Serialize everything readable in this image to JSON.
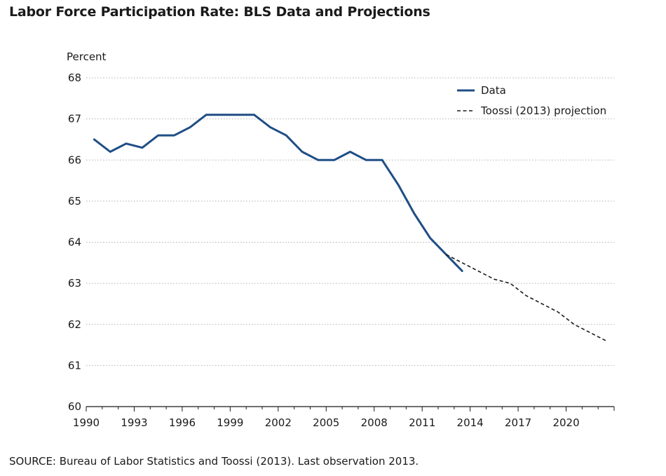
{
  "title": "Labor Force Participation Rate: BLS Data and Projections",
  "source": "SOURCE: Bureau of Labor Statistics and Toossi (2013). Last observation 2013.",
  "colors": {
    "data": "#1f4e85",
    "projection": "#1a1a1a",
    "grid": "#b0b0b0",
    "axis": "#1a1a1a"
  },
  "chart_data": {
    "type": "line",
    "title": "Labor Force Participation Rate: BLS Data and Projections",
    "ylabel": "Percent",
    "xlabel": "",
    "xlim": [
      1990,
      2023
    ],
    "ylim": [
      60,
      68
    ],
    "xticks": [
      1990,
      1993,
      1996,
      1999,
      2002,
      2005,
      2008,
      2011,
      2014,
      2017,
      2020
    ],
    "yticks": [
      60,
      61,
      62,
      63,
      64,
      65,
      66,
      67,
      68
    ],
    "grid": true,
    "legend_position": "top-right",
    "series": [
      {
        "name": "Data",
        "style": "solid",
        "x": [
          1990.5,
          1991.5,
          1992.5,
          1993.5,
          1994.5,
          1995.5,
          1996.5,
          1997.5,
          1998.5,
          1999.5,
          2000.5,
          2001.5,
          2002.5,
          2003.5,
          2004.5,
          2005.5,
          2006.5,
          2007.5,
          2008.5,
          2009.5,
          2010.5,
          2011.5,
          2012.5,
          2013.5
        ],
        "y": [
          66.5,
          66.2,
          66.4,
          66.3,
          66.6,
          66.6,
          66.8,
          67.1,
          67.1,
          67.1,
          67.1,
          66.8,
          66.6,
          66.2,
          66.0,
          66.0,
          66.2,
          66.0,
          66.0,
          65.4,
          64.7,
          64.1,
          63.7,
          63.3
        ]
      },
      {
        "name": "Toossi (2013) projection",
        "style": "dashed",
        "x": [
          2012.5,
          2013.5,
          2014.5,
          2015.5,
          2016.5,
          2017.5,
          2018.5,
          2019.5,
          2020.5,
          2021.5,
          2022.5
        ],
        "y": [
          63.7,
          63.5,
          63.3,
          63.1,
          63.0,
          62.7,
          62.5,
          62.3,
          62.0,
          61.8,
          61.6
        ]
      }
    ]
  }
}
